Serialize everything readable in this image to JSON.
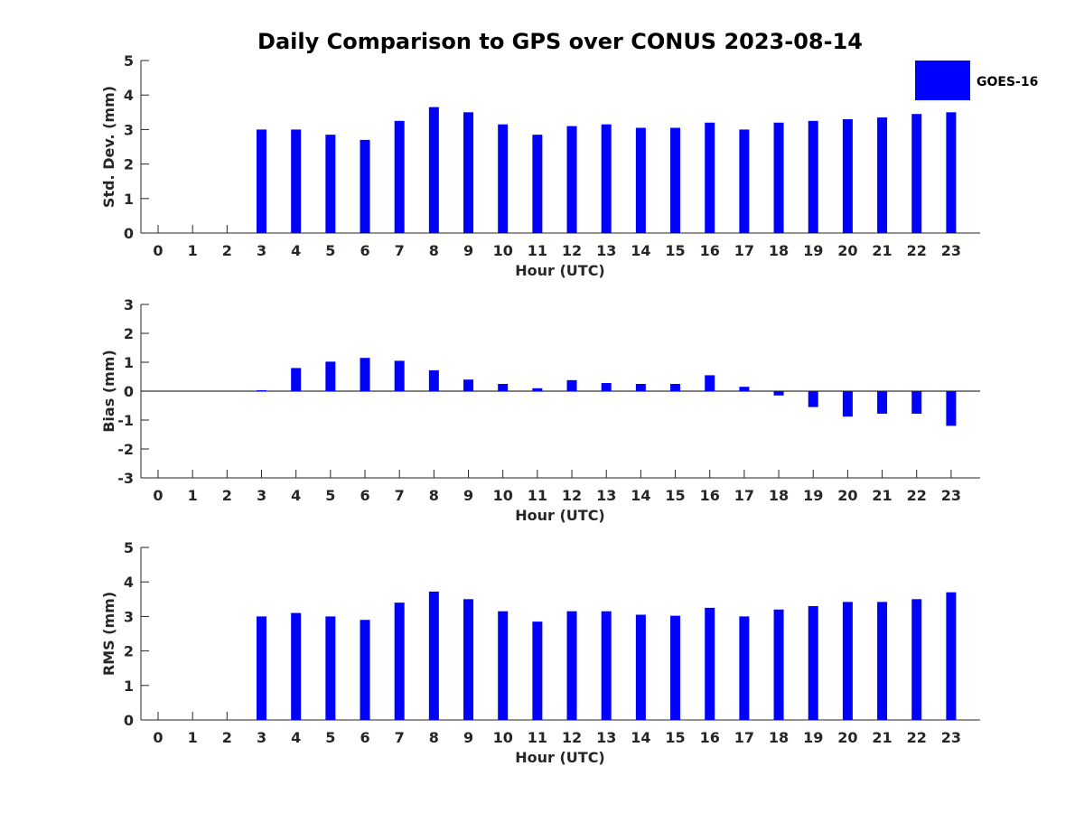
{
  "chart_data": {
    "type": "bar",
    "title": "Daily Comparison to GPS over CONUS 2023-08-14",
    "legend": {
      "label": "GOES-16",
      "placement": "top-right"
    },
    "bar_color": "#0000ff",
    "categories": [
      "0",
      "1",
      "2",
      "3",
      "4",
      "5",
      "6",
      "7",
      "8",
      "9",
      "10",
      "11",
      "12",
      "13",
      "14",
      "15",
      "16",
      "17",
      "18",
      "19",
      "20",
      "21",
      "22",
      "23"
    ],
    "subplots": [
      {
        "key": "std",
        "ylabel": "Std. Dev. (mm)",
        "xlabel": "Hour (UTC)",
        "ylim": [
          0,
          5
        ],
        "yticks": [
          "0",
          "1",
          "2",
          "3",
          "4",
          "5"
        ],
        "zero_line": false,
        "values": [
          null,
          null,
          null,
          3.0,
          3.0,
          2.85,
          2.7,
          3.25,
          3.65,
          3.5,
          3.15,
          2.85,
          3.1,
          3.15,
          3.05,
          3.05,
          3.2,
          3.0,
          3.2,
          3.25,
          3.3,
          3.35,
          3.45,
          3.5
        ]
      },
      {
        "key": "bias",
        "ylabel": "Bias (mm)",
        "xlabel": "Hour (UTC)",
        "ylim": [
          -3,
          3
        ],
        "yticks": [
          "-3",
          "-2",
          "-1",
          "0",
          "1",
          "2",
          "3"
        ],
        "zero_line": true,
        "values": [
          null,
          null,
          null,
          0.03,
          0.8,
          1.02,
          1.15,
          1.05,
          0.72,
          0.4,
          0.25,
          0.1,
          0.38,
          0.28,
          0.25,
          0.25,
          0.55,
          0.15,
          -0.15,
          -0.55,
          -0.88,
          -0.78,
          -0.78,
          -1.2
        ]
      },
      {
        "key": "rms",
        "ylabel": "RMS (mm)",
        "xlabel": "Hour (UTC)",
        "ylim": [
          0,
          5
        ],
        "yticks": [
          "0",
          "1",
          "2",
          "3",
          "4",
          "5"
        ],
        "zero_line": false,
        "values": [
          null,
          null,
          null,
          3.0,
          3.1,
          3.0,
          2.9,
          3.4,
          3.72,
          3.5,
          3.15,
          2.85,
          3.15,
          3.15,
          3.05,
          3.02,
          3.25,
          3.0,
          3.2,
          3.3,
          3.42,
          3.42,
          3.5,
          3.7
        ]
      }
    ]
  }
}
